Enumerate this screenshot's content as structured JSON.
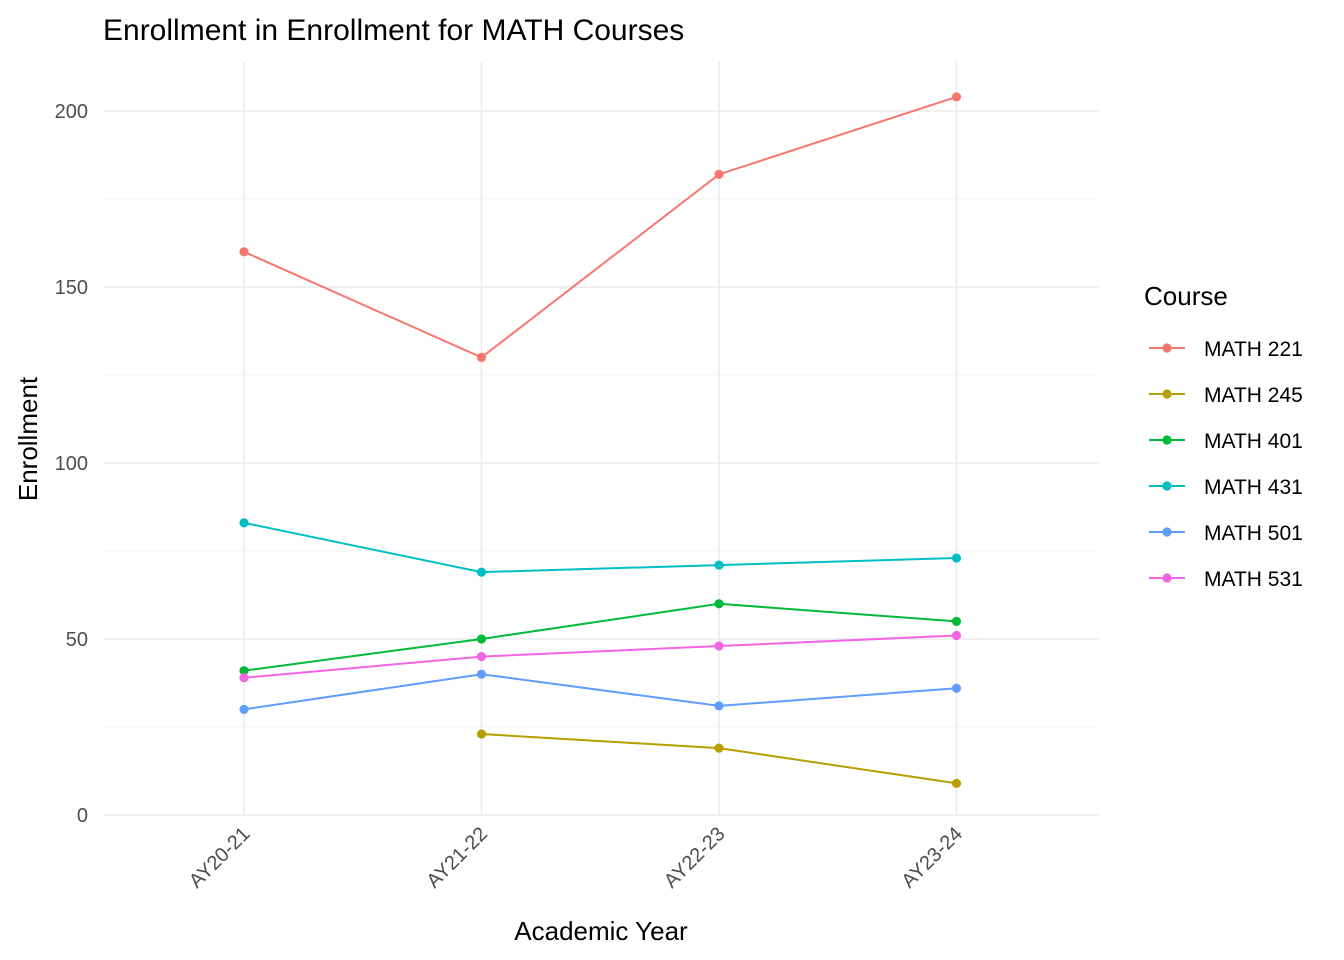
{
  "chart_data": {
    "type": "line",
    "title": "Enrollment in Enrollment for MATH Courses",
    "xlabel": "Academic Year",
    "ylabel": "Enrollment",
    "categories": [
      "AY20-21",
      "AY21-22",
      "AY22-23",
      "AY23-24"
    ],
    "ylim": [
      0,
      214
    ],
    "yticks": [
      0,
      50,
      100,
      150,
      200
    ],
    "grid": true,
    "legend": {
      "title": "Course",
      "position": "right"
    },
    "series": [
      {
        "name": "MATH 221",
        "color": "#F8766D",
        "values": [
          160,
          130,
          182,
          204
        ]
      },
      {
        "name": "MATH 245",
        "color": "#B79F00",
        "values": [
          null,
          23,
          19,
          9
        ]
      },
      {
        "name": "MATH 401",
        "color": "#00BA38",
        "values": [
          41,
          50,
          60,
          55
        ]
      },
      {
        "name": "MATH 431",
        "color": "#00BFC4",
        "values": [
          83,
          69,
          71,
          73
        ]
      },
      {
        "name": "MATH 501",
        "color": "#619CFF",
        "values": [
          30,
          40,
          31,
          36
        ]
      },
      {
        "name": "MATH 531",
        "color": "#F564E3",
        "values": [
          39,
          45,
          48,
          51
        ]
      }
    ]
  }
}
